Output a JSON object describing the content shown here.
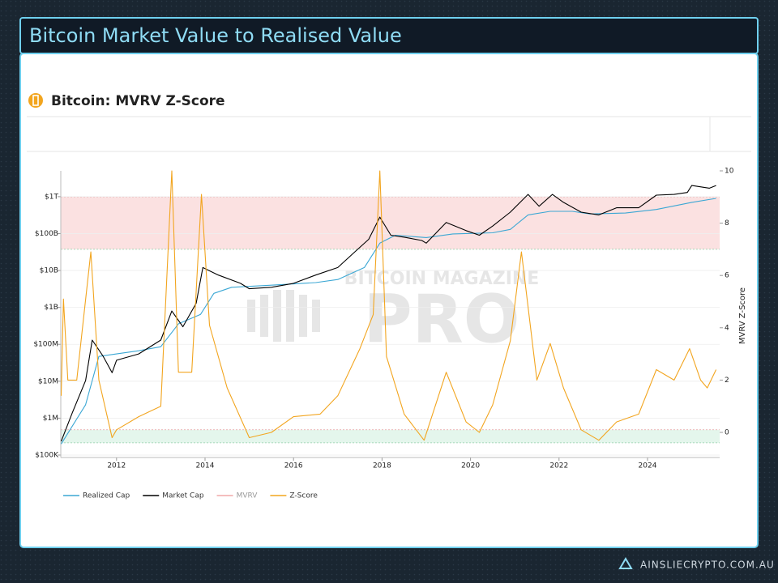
{
  "header": {
    "title": "Bitcoin Market Value to Realised Value"
  },
  "footer": {
    "site": "AINSLIECRYPTO.COM.AU"
  },
  "chart_data": {
    "type": "line",
    "title": "Bitcoin: MVRV Z-Score",
    "watermark": [
      "BITCOIN MAGAZINE",
      "PRO"
    ],
    "y2_label": "MVRV Z-Score",
    "xlim": [
      2010.74,
      2025.63
    ],
    "xticks": [
      2012,
      2014,
      2016,
      2018,
      2020,
      2022,
      2024
    ],
    "ylog": true,
    "ylim": [
      86000,
      5000000000000
    ],
    "yticks": [
      {
        "value": 100000,
        "label": "$100K"
      },
      {
        "value": 1000000,
        "label": "$1M"
      },
      {
        "value": 10000000,
        "label": "$10M"
      },
      {
        "value": 100000000,
        "label": "$100M"
      },
      {
        "value": 1000000000,
        "label": "$1B"
      },
      {
        "value": 10000000000,
        "label": "$10B"
      },
      {
        "value": 100000000000,
        "label": "$100B"
      },
      {
        "value": 1000000000000,
        "label": "$1T"
      }
    ],
    "y2lim": [
      -0.96,
      10
    ],
    "y2ticks": [
      0,
      2,
      4,
      6,
      8,
      10
    ],
    "grid": true,
    "series": [
      {
        "name": "Realized Cap",
        "color": "#3ba7d4",
        "x": [
          2010.75,
          2011.3,
          2011.6,
          2012.0,
          2012.5,
          2013.0,
          2013.4,
          2013.9,
          2014.2,
          2014.6,
          2015.5,
          2016.5,
          2017.0,
          2017.6,
          2017.95,
          2018.3,
          2019.0,
          2019.6,
          2020.5,
          2020.9,
          2021.3,
          2021.8,
          2022.3,
          2022.7,
          2023.5,
          2024.2,
          2024.6,
          2025.0,
          2025.55
        ],
        "values": [
          200000,
          2300000,
          47000000,
          55000000,
          67000000,
          86000000,
          360000000,
          650000000,
          2400000000,
          3500000000,
          4000000000,
          4700000000,
          5700000000,
          12000000000,
          55000000000,
          90000000000,
          78000000000,
          98000000000,
          105000000000,
          130000000000,
          320000000000,
          400000000000,
          400000000000,
          340000000000,
          360000000000,
          450000000000,
          560000000000,
          700000000000,
          900000000000
        ]
      },
      {
        "name": "Market Cap",
        "color": "#000000",
        "x": [
          2010.75,
          2011.0,
          2011.3,
          2011.45,
          2011.7,
          2011.9,
          2012.0,
          2012.5,
          2013.0,
          2013.25,
          2013.5,
          2013.8,
          2013.95,
          2014.3,
          2014.8,
          2015.0,
          2015.5,
          2016.0,
          2016.5,
          2017.0,
          2017.4,
          2017.7,
          2017.95,
          2018.2,
          2018.5,
          2018.9,
          2019.0,
          2019.45,
          2019.9,
          2020.2,
          2020.5,
          2020.9,
          2021.3,
          2021.55,
          2021.85,
          2022.1,
          2022.5,
          2022.9,
          2023.3,
          2023.8,
          2024.2,
          2024.6,
          2024.9,
          2025.0,
          2025.4,
          2025.55
        ],
        "values": [
          235000,
          1400000,
          10400000,
          130000000,
          47000000,
          17000000,
          37000000,
          55000000,
          130000000,
          800000000,
          300000000,
          1300000000,
          12000000000,
          7500000000,
          4500000000,
          3200000000,
          3500000000,
          4500000000,
          7500000000,
          12000000000,
          33000000000,
          70000000000,
          280000000000,
          90000000000,
          80000000000,
          65000000000,
          55000000000,
          200000000000,
          120000000000,
          90000000000,
          160000000000,
          380000000000,
          1150000000000,
          550000000000,
          1150000000000,
          700000000000,
          380000000000,
          320000000000,
          500000000000,
          500000000000,
          1100000000000,
          1150000000000,
          1300000000000,
          2000000000000,
          1700000000000,
          2000000000000
        ]
      },
      {
        "name": "MVRV",
        "type": "band",
        "color": "#f9d4d4",
        "range": [
          7,
          9
        ],
        "axis": "y2"
      },
      {
        "name": "Z-Score",
        "color": "#f2a51f",
        "axis": "y2",
        "x": [
          2010.75,
          2010.8,
          2010.9,
          2011.1,
          2011.42,
          2011.6,
          2011.9,
          2012.0,
          2012.5,
          2013.0,
          2013.25,
          2013.4,
          2013.7,
          2013.92,
          2014.1,
          2014.5,
          2015.0,
          2015.5,
          2016.0,
          2016.6,
          2017.0,
          2017.5,
          2017.8,
          2017.95,
          2018.1,
          2018.5,
          2018.95,
          2019.45,
          2019.9,
          2020.2,
          2020.5,
          2020.9,
          2021.15,
          2021.5,
          2021.8,
          2022.1,
          2022.5,
          2022.9,
          2023.3,
          2023.8,
          2024.2,
          2024.6,
          2024.95,
          2025.2,
          2025.35,
          2025.55
        ],
        "values": [
          1.4,
          5.1,
          2.0,
          2.0,
          6.9,
          2.0,
          -0.2,
          0.1,
          0.6,
          1.0,
          10,
          2.3,
          2.3,
          9.1,
          4.1,
          1.7,
          -0.2,
          0,
          0.6,
          0.7,
          1.4,
          3.2,
          4.5,
          10,
          2.9,
          0.7,
          -0.3,
          2.3,
          0.4,
          0,
          1.05,
          3.5,
          6.9,
          2.0,
          3.4,
          1.7,
          0.1,
          -0.3,
          0.4,
          0.7,
          2.4,
          2.0,
          3.2,
          2.0,
          1.7,
          2.4
        ]
      }
    ],
    "bands": [
      {
        "color": "#d9f2e4",
        "range": [
          -0.4,
          0.1
        ],
        "axis": "y2"
      }
    ]
  }
}
